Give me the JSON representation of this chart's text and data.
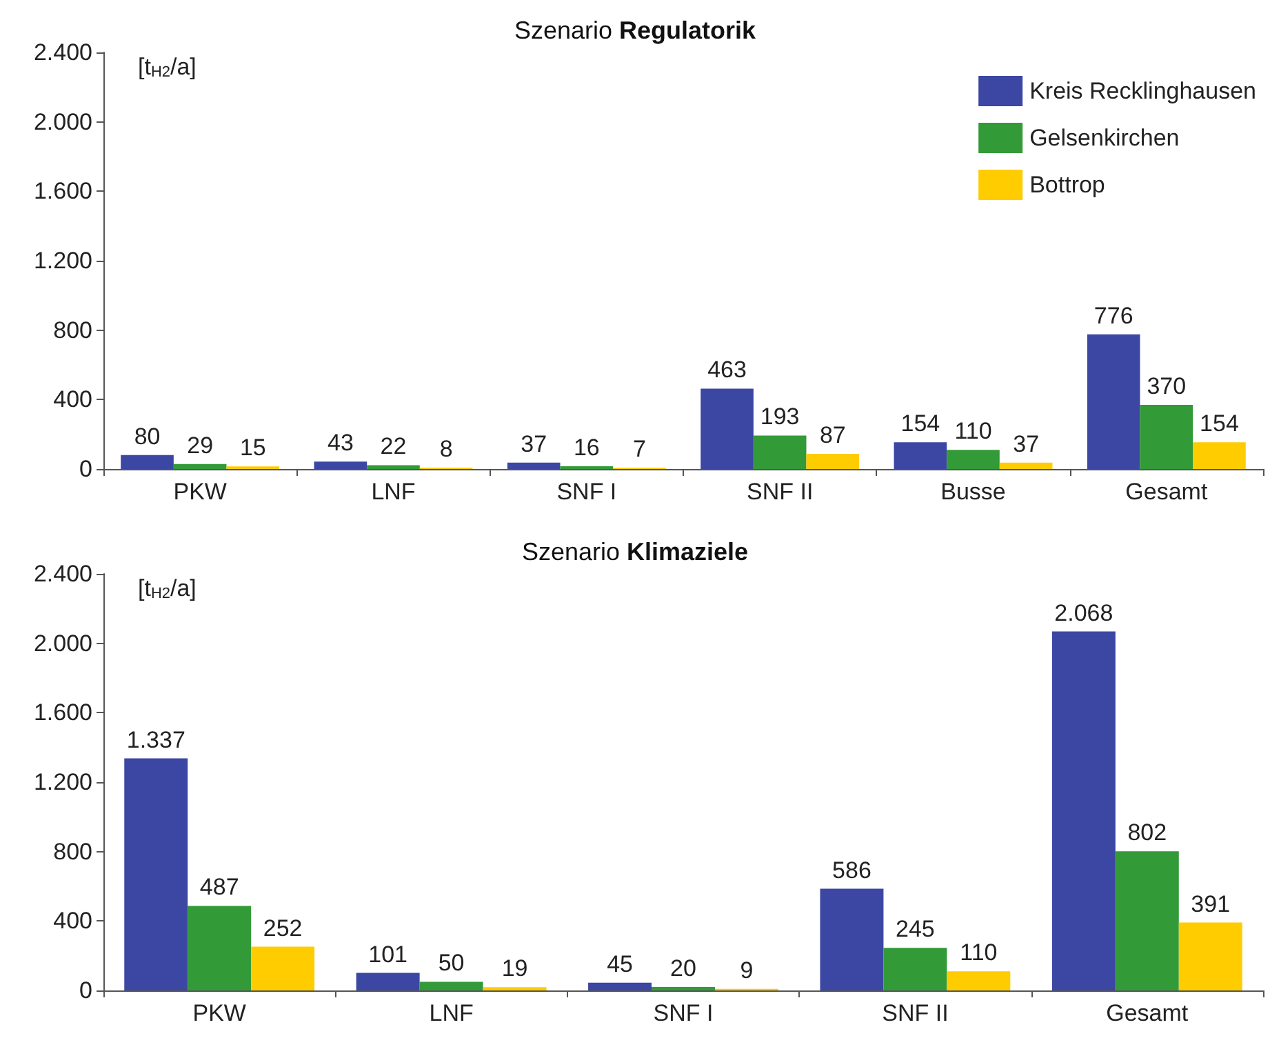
{
  "chart_data": [
    {
      "type": "bar",
      "title": "Szenario Regulatorik",
      "ylabel": "[t$_{H2}$/a]",
      "categories": [
        "PKW",
        "LNF",
        "SNF I",
        "SNF II",
        "Busse",
        "Gesamt"
      ],
      "series": [
        {
          "name": "Kreis Recklinghausen",
          "color": "#3c46a3",
          "values": [
            80,
            43,
            37,
            463,
            154,
            776
          ],
          "value_labels": [
            "80",
            "43",
            "37",
            "463",
            "154",
            "776"
          ]
        },
        {
          "name": "Gelsenkirchen",
          "color": "#339a38",
          "values": [
            29,
            22,
            16,
            193,
            110,
            370
          ],
          "value_labels": [
            "29",
            "22",
            "16",
            "193",
            "110",
            "370"
          ]
        },
        {
          "name": "Bottrop",
          "color": "#ffcc00",
          "values": [
            15,
            8,
            7,
            87,
            37,
            154
          ],
          "value_labels": [
            "15",
            "8",
            "7",
            "87",
            "37",
            "154"
          ]
        }
      ],
      "ylim": [
        0,
        2400
      ],
      "yticks": [
        {
          "value": 0,
          "label": "0"
        },
        {
          "value": 400,
          "label": "400"
        },
        {
          "value": 800,
          "label": "800"
        },
        {
          "value": 1200,
          "label": "1.200"
        },
        {
          "value": 1600,
          "label": "1.600"
        },
        {
          "value": 2000,
          "label": "2.000"
        },
        {
          "value": 2400,
          "label": "2.400"
        }
      ],
      "grid": false,
      "legend": "top right"
    },
    {
      "type": "bar",
      "title": "Szenario Klimaziele",
      "ylabel": "[t$_{H2}$/a]",
      "categories": [
        "PKW",
        "LNF",
        "SNF I",
        "SNF II",
        "Gesamt"
      ],
      "series": [
        {
          "color": "#3c46a3",
          "values": [
            1337,
            101,
            45,
            586,
            2068
          ],
          "value_labels": [
            "1.337",
            "101",
            "45",
            "586",
            "2.068"
          ]
        },
        {
          "color": "#339a38",
          "values": [
            487,
            50,
            20,
            245,
            802
          ],
          "value_labels": [
            "487",
            "50",
            "20",
            "245",
            "802"
          ]
        },
        {
          "color": "#ffcc00",
          "values": [
            252,
            19,
            9,
            110,
            391
          ],
          "value_labels": [
            "252",
            "19",
            "9",
            "110",
            "391"
          ]
        }
      ],
      "ylim": [
        0,
        2400
      ],
      "yticks": [
        {
          "value": 0,
          "label": "0"
        },
        {
          "value": 400,
          "label": "400"
        },
        {
          "value": 800,
          "label": "800"
        },
        {
          "value": 1200,
          "label": "1.200"
        },
        {
          "value": 1600,
          "label": "1.600"
        },
        {
          "value": 2000,
          "label": "2.000"
        },
        {
          "value": 2400,
          "label": "2.400"
        }
      ],
      "grid": false,
      "legend": false
    }
  ]
}
